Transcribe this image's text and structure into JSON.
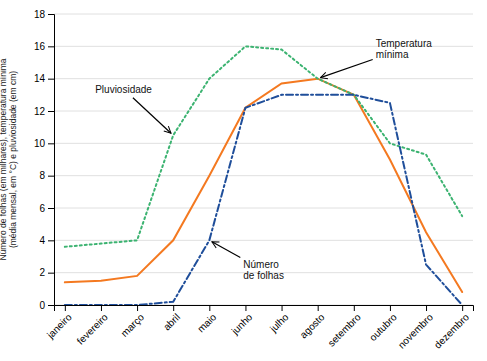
{
  "chart_data": {
    "type": "line",
    "y_label": "Número de folhas (em milhares), temperatura mínima\n(média mensal, em °C) e pluviosidade (em cm)",
    "categories": [
      "janeiro",
      "fevereiro",
      "março",
      "abril",
      "maio",
      "junho",
      "julho",
      "agosto",
      "setembro",
      "outubro",
      "novembro",
      "dezembro"
    ],
    "series": [
      {
        "color": "#F47920",
        "line_style": "solid",
        "values": [
          1.4,
          1.5,
          1.8,
          4.0,
          8.0,
          12.2,
          13.7,
          14.0,
          13.0,
          9.0,
          4.5,
          0.8
        ]
      },
      {
        "color": "#3CB371",
        "line_style": "dotted",
        "values": [
          3.6,
          3.8,
          4.0,
          10.5,
          14.0,
          16.0,
          15.8,
          14.0,
          13.0,
          10.0,
          9.3,
          5.5
        ]
      },
      {
        "color": "#1F4E9A",
        "line_style": "dashdot",
        "values": [
          0.0,
          0.0,
          0.0,
          0.2,
          4.0,
          12.2,
          13.0,
          13.0,
          13.0,
          12.5,
          2.5,
          0.0
        ]
      }
    ],
    "annotations": [
      "Temperatura\nmínima",
      "Pluviosidade",
      "Número\nde folhas"
    ],
    "ylim": [
      0,
      18
    ],
    "yticks": [
      0,
      2,
      4,
      6,
      8,
      10,
      12,
      14,
      16,
      18
    ],
    "grid": true
  }
}
